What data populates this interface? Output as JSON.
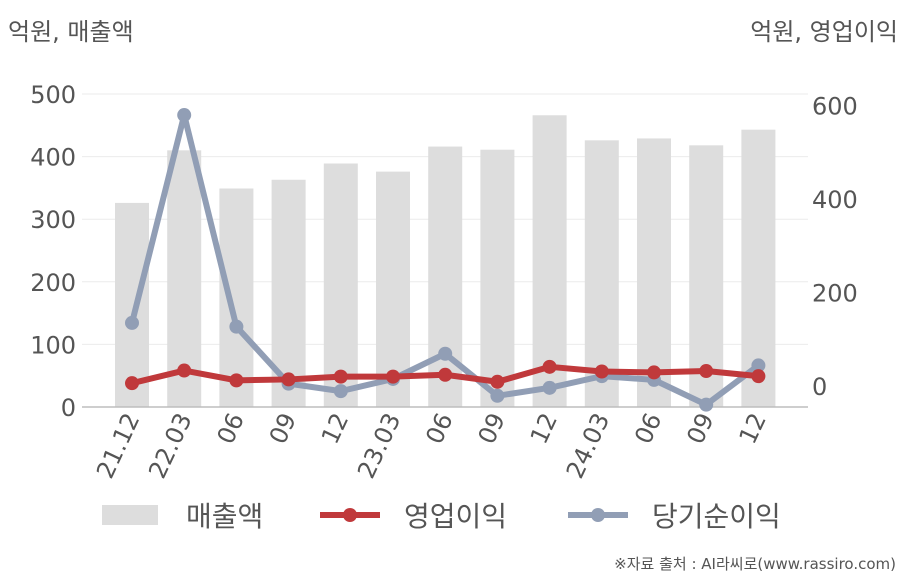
{
  "units": {
    "left": "억원, 매출액",
    "right": "억원, 영업이익"
  },
  "source": "※자료 출처 : AI라씨로(www.rassiro.com)",
  "chart_data": {
    "type": "bar",
    "categories": [
      "21.12",
      "22.03",
      "06",
      "09",
      "12",
      "23.03",
      "06",
      "09",
      "12",
      "24.03",
      "06",
      "09",
      "12"
    ],
    "y_left": {
      "ticks": [
        0,
        100,
        200,
        300,
        400,
        500
      ],
      "range": [
        0,
        500
      ]
    },
    "y_right": {
      "ticks": [
        0,
        200,
        400,
        600
      ],
      "range": [
        -45,
        625
      ]
    },
    "series": [
      {
        "name": "매출액",
        "type": "bar",
        "axis": "left",
        "color": "#dddddd",
        "values": [
          326,
          410,
          349,
          363,
          389,
          376,
          416,
          411,
          466,
          426,
          429,
          418,
          443
        ]
      },
      {
        "name": "영업이익",
        "type": "line",
        "axis": "right",
        "color": "#c0393b",
        "values": [
          6,
          33,
          12,
          14,
          20,
          20,
          24,
          9,
          41,
          31,
          29,
          32,
          21
        ]
      },
      {
        "name": "당기순이익",
        "type": "line",
        "axis": "right",
        "color": "#919eb5",
        "values": [
          135,
          580,
          127,
          5,
          -11,
          15,
          69,
          -21,
          -4,
          21,
          13,
          -40,
          44
        ]
      }
    ],
    "grid": true,
    "legend": "bottom"
  }
}
